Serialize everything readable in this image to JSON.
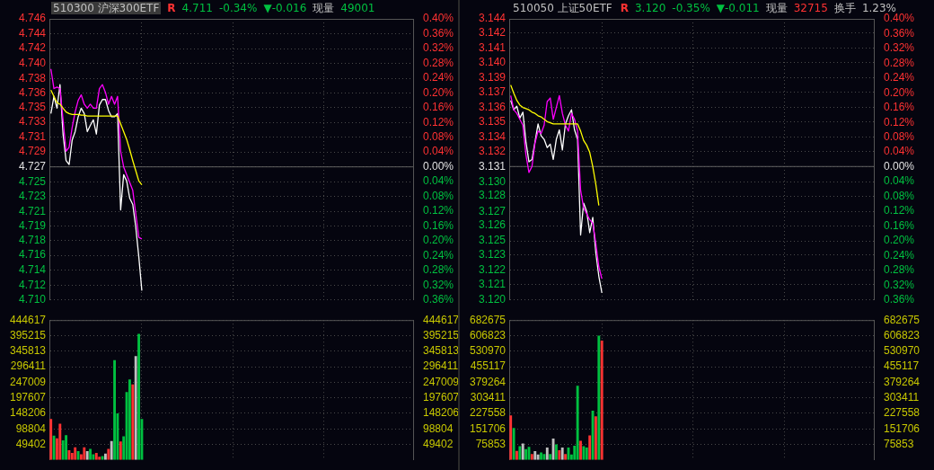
{
  "chart_data": [
    {
      "type": "line",
      "title": "510300 沪深300ETF",
      "annotations": [
        "R",
        "4.711",
        "-0.34%",
        "▼-0.016",
        "现量",
        "49001"
      ],
      "categories": [
        null,
        null,
        null,
        null,
        null,
        null,
        null,
        null,
        null,
        null,
        null,
        null,
        null,
        null,
        null,
        null,
        null,
        null,
        null,
        null,
        null,
        null,
        null,
        null,
        null,
        null,
        null,
        null,
        null,
        null,
        null,
        null,
        null,
        null,
        null,
        null,
        null,
        null,
        null,
        null,
        null,
        null,
        null,
        null,
        null,
        null,
        null,
        null,
        null,
        null,
        null,
        null,
        null,
        null,
        null,
        null,
        null,
        null,
        null,
        null,
        null,
        null,
        null,
        null,
        null,
        null,
        null,
        null,
        null,
        null,
        null,
        null,
        null,
        null,
        null,
        null,
        null,
        null,
        null,
        null,
        null,
        null,
        null,
        null,
        null,
        null,
        null,
        null,
        null,
        null,
        null,
        null,
        null,
        null,
        null,
        null,
        null,
        null,
        null,
        null,
        null,
        null,
        null,
        null,
        null,
        null,
        null,
        null,
        null,
        null,
        null,
        null,
        null,
        null,
        null,
        null,
        null,
        null,
        null,
        null
      ],
      "series": [
        {
          "color": "#ffff00",
          "values": [
            4.7368,
            4.736,
            4.7352,
            4.735,
            4.7345,
            4.734,
            4.7338,
            4.7337,
            4.7337,
            4.7337,
            4.7336,
            4.7336,
            4.7335,
            4.7335,
            4.7335,
            4.7335,
            4.7335,
            4.7335,
            4.7335,
            4.7335,
            4.7335,
            4.7335,
            4.7335,
            4.7325,
            4.7315,
            4.7305,
            4.7292,
            4.7278,
            4.7265,
            4.7252,
            4.7247,
            null,
            null,
            null,
            null,
            null,
            null,
            null,
            null,
            null,
            null,
            null,
            null,
            null,
            null,
            null,
            null,
            null,
            null,
            null,
            null,
            null,
            null,
            null,
            null,
            null,
            null,
            null,
            null,
            null,
            null,
            null,
            null,
            null,
            null,
            null,
            null,
            null,
            null,
            null,
            null,
            null,
            null,
            null,
            null,
            null,
            null,
            null,
            null,
            null,
            null,
            null,
            null,
            null,
            null,
            null,
            null,
            null,
            null,
            null,
            null,
            null,
            null,
            null,
            null,
            null,
            null,
            null,
            null,
            null,
            null,
            null,
            null,
            null,
            null,
            null,
            null,
            null,
            null,
            null,
            null,
            null,
            null,
            null,
            null,
            null,
            null,
            null,
            null,
            null
          ]
        },
        {
          "color": "#ff00ff",
          "values": [
            4.7395,
            4.737,
            4.7372,
            4.737,
            4.733,
            4.729,
            4.7295,
            4.732,
            4.734,
            4.7355,
            4.7362,
            4.735,
            4.7345,
            4.735,
            4.7345,
            4.7345,
            4.737,
            4.7375,
            4.7365,
            4.735,
            4.736,
            4.735,
            4.736,
            4.729,
            4.727,
            4.726,
            4.725,
            4.724,
            4.721,
            4.718,
            4.7178,
            null,
            null,
            null,
            null,
            null,
            null,
            null,
            null,
            null,
            null,
            null,
            null,
            null,
            null,
            null,
            null,
            null,
            null,
            null,
            null,
            null,
            null,
            null,
            null,
            null,
            null,
            null,
            null,
            null,
            null,
            null,
            null,
            null,
            null,
            null,
            null,
            null,
            null,
            null,
            null,
            null,
            null,
            null,
            null,
            null,
            null,
            null,
            null,
            null,
            null,
            null,
            null,
            null,
            null,
            null,
            null,
            null,
            null,
            null,
            null,
            null,
            null,
            null,
            null,
            null,
            null,
            null,
            null,
            null,
            null,
            null,
            null,
            null,
            null,
            null,
            null,
            null,
            null,
            null,
            null,
            null,
            null,
            null,
            null,
            null,
            null,
            null,
            null,
            null
          ]
        },
        {
          "color": "#ffffff",
          "values": [
            4.7338,
            4.736,
            4.7345,
            4.7375,
            4.7312,
            4.7278,
            4.7273,
            4.7304,
            4.7315,
            4.7334,
            4.7345,
            4.7338,
            4.7315,
            4.7323,
            4.733,
            4.7312,
            4.7349,
            4.7356,
            4.7356,
            4.7342,
            4.7334,
            4.7334,
            4.7338,
            4.7215,
            4.726,
            4.7252,
            4.723,
            4.7222,
            4.7193,
            4.7155,
            4.7112,
            null,
            null,
            null,
            null,
            null,
            null,
            null,
            null,
            null,
            null,
            null,
            null,
            null,
            null,
            null,
            null,
            null,
            null,
            null,
            null,
            null,
            null,
            null,
            null,
            null,
            null,
            null,
            null,
            null,
            null,
            null,
            null,
            null,
            null,
            null,
            null,
            null,
            null,
            null,
            null,
            null,
            null,
            null,
            null,
            null,
            null,
            null,
            null,
            null,
            null,
            null,
            null,
            null,
            null,
            null,
            null,
            null,
            null,
            null,
            null,
            null,
            null,
            null,
            null,
            null,
            null,
            null,
            null,
            null,
            null,
            null,
            null,
            null,
            null,
            null,
            null,
            null,
            null,
            null,
            null,
            null,
            null,
            null,
            null,
            null,
            null,
            null,
            null,
            null
          ]
        }
      ],
      "ylim": [
        4.71,
        4.7459
      ],
      "yticks": [
        {
          "value": 4.7459,
          "label": "4.746"
        },
        {
          "value": 4.744,
          "label": "4.744"
        },
        {
          "value": 4.7421,
          "label": "4.742"
        },
        {
          "value": 4.7402,
          "label": "4.740"
        },
        {
          "value": 4.7383,
          "label": "4.738"
        },
        {
          "value": 4.7364,
          "label": "4.736"
        },
        {
          "value": 4.7346,
          "label": "4.735"
        },
        {
          "value": 4.7327,
          "label": "4.733"
        },
        {
          "value": 4.7308,
          "label": "4.731"
        },
        {
          "value": 4.7289,
          "label": "4.729"
        },
        {
          "value": 4.727,
          "label": "4.727"
        },
        {
          "value": 4.7251,
          "label": "4.725"
        },
        {
          "value": 4.7232,
          "label": "4.723"
        },
        {
          "value": 4.7213,
          "label": "4.721"
        },
        {
          "value": 4.7194,
          "label": "4.719"
        },
        {
          "value": 4.7176,
          "label": "4.718"
        },
        {
          "value": 4.7157,
          "label": "4.716"
        },
        {
          "value": 4.7138,
          "label": "4.714"
        },
        {
          "value": 4.7119,
          "label": "4.712"
        },
        {
          "value": 4.71,
          "label": "4.710"
        }
      ],
      "y2lim": [
        -0.36,
        0.4
      ],
      "y2ticks": [
        {
          "value": 0.4,
          "label": "0.40%"
        },
        {
          "value": 0.36,
          "label": "0.36%"
        },
        {
          "value": 0.32,
          "label": "0.32%"
        },
        {
          "value": 0.28,
          "label": "0.28%"
        },
        {
          "value": 0.24,
          "label": "0.24%"
        },
        {
          "value": 0.2,
          "label": "0.20%"
        },
        {
          "value": 0.16,
          "label": "0.16%"
        },
        {
          "value": 0.12,
          "label": "0.12%"
        },
        {
          "value": 0.08,
          "label": "0.08%"
        },
        {
          "value": 0.04,
          "label": "0.04%"
        },
        {
          "value": 0,
          "label": "0.00%"
        },
        {
          "value": -0.04,
          "label": "0.04%"
        },
        {
          "value": -0.08,
          "label": "0.08%"
        },
        {
          "value": -0.12,
          "label": "0.12%"
        },
        {
          "value": -0.16,
          "label": "0.16%"
        },
        {
          "value": -0.2,
          "label": "0.20%"
        },
        {
          "value": -0.24,
          "label": "0.24%"
        },
        {
          "value": -0.28,
          "label": "0.28%"
        },
        {
          "value": -0.32,
          "label": "0.32%"
        },
        {
          "value": -0.36,
          "label": "0.36%"
        }
      ],
      "ref_lines": [
        {
          "axis": "y",
          "value": 4.727,
          "color": "#606060"
        }
      ],
      "grid": true,
      "legend": false
    },
    {
      "type": "bar",
      "categories": [
        null,
        null,
        null,
        null,
        null,
        null,
        null,
        null,
        null,
        null,
        null,
        null,
        null,
        null,
        null,
        null,
        null,
        null,
        null,
        null,
        null,
        null,
        null,
        null,
        null,
        null,
        null,
        null,
        null,
        null,
        null,
        null,
        null,
        null,
        null,
        null,
        null,
        null,
        null,
        null,
        null,
        null,
        null,
        null,
        null,
        null,
        null,
        null,
        null,
        null,
        null,
        null,
        null,
        null,
        null,
        null,
        null,
        null,
        null,
        null,
        null,
        null,
        null,
        null,
        null,
        null,
        null,
        null,
        null,
        null,
        null,
        null,
        null,
        null,
        null,
        null,
        null,
        null,
        null,
        null,
        null,
        null,
        null,
        null,
        null,
        null,
        null,
        null,
        null,
        null,
        null,
        null,
        null,
        null,
        null,
        null,
        null,
        null,
        null,
        null,
        null,
        null,
        null,
        null,
        null,
        null,
        null,
        null,
        null,
        null,
        null,
        null,
        null,
        null,
        null,
        null,
        null,
        null,
        null,
        null
      ],
      "values": [
        130000,
        77000,
        69000,
        115000,
        62000,
        79000,
        31000,
        22000,
        40000,
        28000,
        18000,
        40000,
        28000,
        35000,
        18000,
        22000,
        10000,
        12000,
        20000,
        35000,
        60000,
        317000,
        148000,
        59000,
        75000,
        216000,
        256000,
        240000,
        330000,
        401000,
        130000,
        null,
        null,
        null,
        null,
        null,
        null,
        null,
        null,
        null,
        null,
        null,
        null,
        null,
        null,
        null,
        null,
        null,
        null,
        null,
        null,
        null,
        null,
        null,
        null,
        null,
        null,
        null,
        null,
        null,
        null,
        null,
        null,
        null,
        null,
        null,
        null,
        null,
        null,
        null,
        null,
        null,
        null,
        null,
        null,
        null,
        null,
        null,
        null,
        null,
        null,
        null,
        null,
        null,
        null,
        null,
        null,
        null,
        null,
        null,
        null,
        null,
        null,
        null,
        null,
        null,
        null,
        null,
        null,
        null,
        null,
        null,
        null,
        null,
        null,
        null,
        null,
        null,
        null,
        null,
        null,
        null,
        null,
        null,
        null,
        null,
        null,
        null,
        null,
        null
      ],
      "colors": [
        "#ff3232",
        "#00c040",
        "#ff3232",
        "#ff3232",
        "#00c040",
        "#00c040",
        "#ff3232",
        "#ff3232",
        "#ff3232",
        "#00c040",
        "#ff3232",
        "#ff3232",
        "#c0c0c0",
        "#00c040",
        "#00c040",
        "#ff3232",
        "#ff3232",
        "#00c040",
        "#c0c0c0",
        "#ff3232",
        "#c0c0c0",
        "#00c040",
        "#00c040",
        "#ff3232",
        "#00c040",
        "#00c040",
        "#00c040",
        "#ff3232",
        "#c0c0c0",
        "#00c040",
        "#00c040",
        null,
        null,
        null,
        null,
        null,
        null,
        null,
        null,
        null,
        null,
        null,
        null,
        null,
        null,
        null,
        null,
        null,
        null,
        null,
        null,
        null,
        null,
        null,
        null,
        null,
        null,
        null,
        null,
        null,
        null,
        null,
        null,
        null,
        null,
        null,
        null,
        null,
        null,
        null,
        null,
        null,
        null,
        null,
        null,
        null,
        null,
        null,
        null,
        null,
        null,
        null,
        null,
        null,
        null,
        null,
        null,
        null,
        null,
        null,
        null,
        null,
        null,
        null,
        null,
        null,
        null,
        null,
        null,
        null,
        null,
        null,
        null,
        null,
        null,
        null,
        null,
        null,
        null,
        null,
        null,
        null,
        null,
        null,
        null,
        null,
        null,
        null,
        null,
        null
      ],
      "ylim": [
        0,
        444617
      ],
      "yticks": [
        49402,
        98804,
        148206,
        197607,
        247009,
        296411,
        345813,
        395215,
        444617
      ],
      "y2lim": [
        0,
        444617
      ],
      "y2ticks": [
        49402,
        98804,
        148206,
        197607,
        247009,
        296411,
        345813,
        395215,
        444617
      ],
      "grid": true,
      "legend": false
    },
    {
      "type": "line",
      "title": "510050 上证50ETF",
      "annotations": [
        "R",
        "3.120",
        "-0.35%",
        "▼-0.011",
        "现量",
        "32715",
        "换手",
        "1.23%"
      ],
      "categories": [
        null,
        null,
        null,
        null,
        null,
        null,
        null,
        null,
        null,
        null,
        null,
        null,
        null,
        null,
        null,
        null,
        null,
        null,
        null,
        null,
        null,
        null,
        null,
        null,
        null,
        null,
        null,
        null,
        null,
        null,
        null,
        null,
        null,
        null,
        null,
        null,
        null,
        null,
        null,
        null,
        null,
        null,
        null,
        null,
        null,
        null,
        null,
        null,
        null,
        null,
        null,
        null,
        null,
        null,
        null,
        null,
        null,
        null,
        null,
        null,
        null,
        null,
        null,
        null,
        null,
        null,
        null,
        null,
        null,
        null,
        null,
        null,
        null,
        null,
        null,
        null,
        null,
        null,
        null,
        null,
        null,
        null,
        null,
        null,
        null,
        null,
        null,
        null,
        null,
        null,
        null,
        null,
        null,
        null,
        null,
        null,
        null,
        null,
        null,
        null,
        null,
        null,
        null,
        null,
        null,
        null,
        null,
        null,
        null,
        null,
        null,
        null,
        null,
        null,
        null,
        null,
        null,
        null,
        null,
        null
      ],
      "series": [
        {
          "color": "#ffff00",
          "values": [
            3.1379,
            3.1372,
            3.1366,
            3.1362,
            3.136,
            3.1359,
            3.1358,
            3.1356,
            3.1355,
            3.1353,
            3.1352,
            3.135,
            3.1348,
            3.1347,
            3.1346,
            3.1346,
            3.1346,
            3.1346,
            3.1346,
            3.1346,
            3.1346,
            3.1346,
            3.1346,
            3.134,
            3.1332,
            3.1328,
            3.1322,
            3.131,
            3.1295,
            3.1277,
            null,
            null,
            null,
            null,
            null,
            null,
            null,
            null,
            null,
            null,
            null,
            null,
            null,
            null,
            null,
            null,
            null,
            null,
            null,
            null,
            null,
            null,
            null,
            null,
            null,
            null,
            null,
            null,
            null,
            null,
            null,
            null,
            null,
            null,
            null,
            null,
            null,
            null,
            null,
            null,
            null,
            null,
            null,
            null,
            null,
            null,
            null,
            null,
            null,
            null,
            null,
            null,
            null,
            null,
            null,
            null,
            null,
            null,
            null,
            null,
            null,
            null,
            null,
            null,
            null,
            null,
            null,
            null,
            null,
            null,
            null,
            null,
            null,
            null,
            null,
            null,
            null,
            null,
            null,
            null,
            null,
            null,
            null,
            null,
            null,
            null,
            null,
            null,
            null,
            null
          ]
        },
        {
          "color": "#ff00ff",
          "values": [
            3.137,
            3.1358,
            3.1355,
            3.135,
            3.1345,
            3.132,
            3.1305,
            3.131,
            3.133,
            3.134,
            3.1338,
            3.1345,
            3.1365,
            3.1368,
            3.135,
            3.136,
            3.137,
            3.1355,
            3.1345,
            3.134,
            3.1355,
            3.135,
            3.134,
            3.129,
            3.1275,
            3.127,
            3.1265,
            3.1262,
            3.1245,
            3.1225,
            3.1215,
            null,
            null,
            null,
            null,
            null,
            null,
            null,
            null,
            null,
            null,
            null,
            null,
            null,
            null,
            null,
            null,
            null,
            null,
            null,
            null,
            null,
            null,
            null,
            null,
            null,
            null,
            null,
            null,
            null,
            null,
            null,
            null,
            null,
            null,
            null,
            null,
            null,
            null,
            null,
            null,
            null,
            null,
            null,
            null,
            null,
            null,
            null,
            null,
            null,
            null,
            null,
            null,
            null,
            null,
            null,
            null,
            null,
            null,
            null,
            null,
            null,
            null,
            null,
            null,
            null,
            null,
            null,
            null,
            null,
            null,
            null,
            null,
            null,
            null,
            null,
            null,
            null,
            null,
            null,
            null,
            null,
            null,
            null,
            null,
            null,
            null,
            null,
            null,
            null
          ]
        },
        {
          "color": "#ffffff",
          "values": [
            3.1366,
            3.1358,
            3.1361,
            3.1351,
            3.1356,
            3.1331,
            3.1314,
            3.1316,
            3.1331,
            3.1346,
            3.1336,
            3.1333,
            3.1326,
            3.1329,
            3.1316,
            3.1333,
            3.1341,
            3.1324,
            3.1346,
            3.1353,
            3.1358,
            3.1341,
            3.1333,
            3.1252,
            3.1279,
            3.1272,
            3.1254,
            3.1267,
            3.1237,
            3.1217,
            3.1203,
            null,
            null,
            null,
            null,
            null,
            null,
            null,
            null,
            null,
            null,
            null,
            null,
            null,
            null,
            null,
            null,
            null,
            null,
            null,
            null,
            null,
            null,
            null,
            null,
            null,
            null,
            null,
            null,
            null,
            null,
            null,
            null,
            null,
            null,
            null,
            null,
            null,
            null,
            null,
            null,
            null,
            null,
            null,
            null,
            null,
            null,
            null,
            null,
            null,
            null,
            null,
            null,
            null,
            null,
            null,
            null,
            null,
            null,
            null,
            null,
            null,
            null,
            null,
            null,
            null,
            null,
            null,
            null,
            null,
            null,
            null,
            null,
            null,
            null,
            null,
            null,
            null,
            null,
            null,
            null,
            null,
            null,
            null,
            null,
            null,
            null,
            null,
            null,
            null
          ]
        }
      ],
      "ylim": [
        3.1197,
        3.1435
      ],
      "yticks": [
        {
          "value": 3.1435,
          "label": "3.144"
        },
        {
          "value": 3.1423,
          "label": "3.142"
        },
        {
          "value": 3.141,
          "label": "3.141"
        },
        {
          "value": 3.1398,
          "label": "3.140"
        },
        {
          "value": 3.1385,
          "label": "3.139"
        },
        {
          "value": 3.1373,
          "label": "3.137"
        },
        {
          "value": 3.136,
          "label": "3.136"
        },
        {
          "value": 3.1348,
          "label": "3.135"
        },
        {
          "value": 3.1335,
          "label": "3.134"
        },
        {
          "value": 3.1323,
          "label": "3.132"
        },
        {
          "value": 3.131,
          "label": "3.131"
        },
        {
          "value": 3.1297,
          "label": "3.130"
        },
        {
          "value": 3.1285,
          "label": "3.128"
        },
        {
          "value": 3.1272,
          "label": "3.127"
        },
        {
          "value": 3.126,
          "label": "3.126"
        },
        {
          "value": 3.1247,
          "label": "3.125"
        },
        {
          "value": 3.1235,
          "label": "3.123"
        },
        {
          "value": 3.1222,
          "label": "3.122"
        },
        {
          "value": 3.121,
          "label": "3.121"
        },
        {
          "value": 3.1197,
          "label": "3.120"
        }
      ],
      "y2lim": [
        -0.36,
        0.4
      ],
      "y2ticks": [
        {
          "value": 0.4,
          "label": "0.40%"
        },
        {
          "value": 0.36,
          "label": "0.36%"
        },
        {
          "value": 0.32,
          "label": "0.32%"
        },
        {
          "value": 0.28,
          "label": "0.28%"
        },
        {
          "value": 0.24,
          "label": "0.24%"
        },
        {
          "value": 0.2,
          "label": "0.20%"
        },
        {
          "value": 0.16,
          "label": "0.16%"
        },
        {
          "value": 0.12,
          "label": "0.12%"
        },
        {
          "value": 0.08,
          "label": "0.08%"
        },
        {
          "value": 0.04,
          "label": "0.04%"
        },
        {
          "value": 0,
          "label": "0.00%"
        },
        {
          "value": -0.04,
          "label": "0.04%"
        },
        {
          "value": -0.08,
          "label": "0.08%"
        },
        {
          "value": -0.12,
          "label": "0.12%"
        },
        {
          "value": -0.16,
          "label": "0.16%"
        },
        {
          "value": -0.2,
          "label": "0.20%"
        },
        {
          "value": -0.24,
          "label": "0.24%"
        },
        {
          "value": -0.28,
          "label": "0.28%"
        },
        {
          "value": -0.32,
          "label": "0.32%"
        },
        {
          "value": -0.36,
          "label": "0.36%"
        }
      ],
      "ref_lines": [
        {
          "axis": "y",
          "value": 3.131,
          "color": "#606060"
        }
      ],
      "grid": true,
      "legend": false
    },
    {
      "type": "bar",
      "categories": [
        null,
        null,
        null,
        null,
        null,
        null,
        null,
        null,
        null,
        null,
        null,
        null,
        null,
        null,
        null,
        null,
        null,
        null,
        null,
        null,
        null,
        null,
        null,
        null,
        null,
        null,
        null,
        null,
        null,
        null,
        null,
        null,
        null,
        null,
        null,
        null,
        null,
        null,
        null,
        null,
        null,
        null,
        null,
        null,
        null,
        null,
        null,
        null,
        null,
        null,
        null,
        null,
        null,
        null,
        null,
        null,
        null,
        null,
        null,
        null,
        null,
        null,
        null,
        null,
        null,
        null,
        null,
        null,
        null,
        null,
        null,
        null,
        null,
        null,
        null,
        null,
        null,
        null,
        null,
        null,
        null,
        null,
        null,
        null,
        null,
        null,
        null,
        null,
        null,
        null,
        null,
        null,
        null,
        null,
        null,
        null,
        null,
        null,
        null,
        null,
        null,
        null,
        null,
        null,
        null,
        null,
        null,
        null,
        null,
        null,
        null,
        null,
        null,
        null,
        null,
        null,
        null,
        null,
        null,
        null
      ],
      "values": [
        217000,
        156000,
        44000,
        67000,
        80000,
        53000,
        64000,
        29000,
        43000,
        27000,
        36000,
        29000,
        60000,
        29000,
        104000,
        76000,
        47000,
        60000,
        29000,
        60000,
        27000,
        69000,
        362000,
        93000,
        67000,
        60000,
        120000,
        240000,
        213000,
        607000,
        583000,
        null,
        null,
        null,
        null,
        null,
        null,
        null,
        null,
        null,
        null,
        null,
        null,
        null,
        null,
        null,
        null,
        null,
        null,
        null,
        null,
        null,
        null,
        null,
        null,
        null,
        null,
        null,
        null,
        null,
        null,
        null,
        null,
        null,
        null,
        null,
        null,
        null,
        null,
        null,
        null,
        null,
        null,
        null,
        null,
        null,
        null,
        null,
        null,
        null,
        null,
        null,
        null,
        null,
        null,
        null,
        null,
        null,
        null,
        null,
        null,
        null,
        null,
        null,
        null,
        null,
        null,
        null,
        null,
        null,
        null,
        null,
        null,
        null,
        null,
        null,
        null,
        null,
        null,
        null,
        null,
        null,
        null,
        null,
        null,
        null,
        null,
        null,
        null,
        null
      ],
      "colors": [
        "#ff3232",
        "#00c040",
        "#ff3232",
        "#00c040",
        "#c0c0c0",
        "#00c040",
        "#00c040",
        "#ff3232",
        "#c0c0c0",
        "#c0c0c0",
        "#00c040",
        "#00c040",
        "#c0c0c0",
        "#00c040",
        "#c0c0c0",
        "#00c040",
        "#ff3232",
        "#c0c0c0",
        "#ff3232",
        "#00c040",
        "#00c040",
        "#00c040",
        "#00c040",
        "#ff3232",
        "#00c040",
        "#00c040",
        "#ff3232",
        "#00c040",
        "#ff3232",
        "#00c040",
        "#ff3232",
        null,
        null,
        null,
        null,
        null,
        null,
        null,
        null,
        null,
        null,
        null,
        null,
        null,
        null,
        null,
        null,
        null,
        null,
        null,
        null,
        null,
        null,
        null,
        null,
        null,
        null,
        null,
        null,
        null,
        null,
        null,
        null,
        null,
        null,
        null,
        null,
        null,
        null,
        null,
        null,
        null,
        null,
        null,
        null,
        null,
        null,
        null,
        null,
        null,
        null,
        null,
        null,
        null,
        null,
        null,
        null,
        null,
        null,
        null,
        null,
        null,
        null,
        null,
        null,
        null,
        null,
        null,
        null,
        null,
        null,
        null,
        null,
        null,
        null,
        null,
        null,
        null,
        null,
        null,
        null,
        null,
        null,
        null,
        null,
        null,
        null,
        null,
        null,
        null
      ],
      "ylim": [
        0,
        682675
      ],
      "yticks": [
        75853,
        151706,
        227558,
        303411,
        379264,
        455117,
        530970,
        606823,
        682675
      ],
      "y2lim": [
        0,
        682675
      ],
      "y2ticks": [
        75853,
        151706,
        227558,
        303411,
        379264,
        455117,
        530970,
        606823,
        682675
      ],
      "grid": true,
      "legend": false
    }
  ]
}
